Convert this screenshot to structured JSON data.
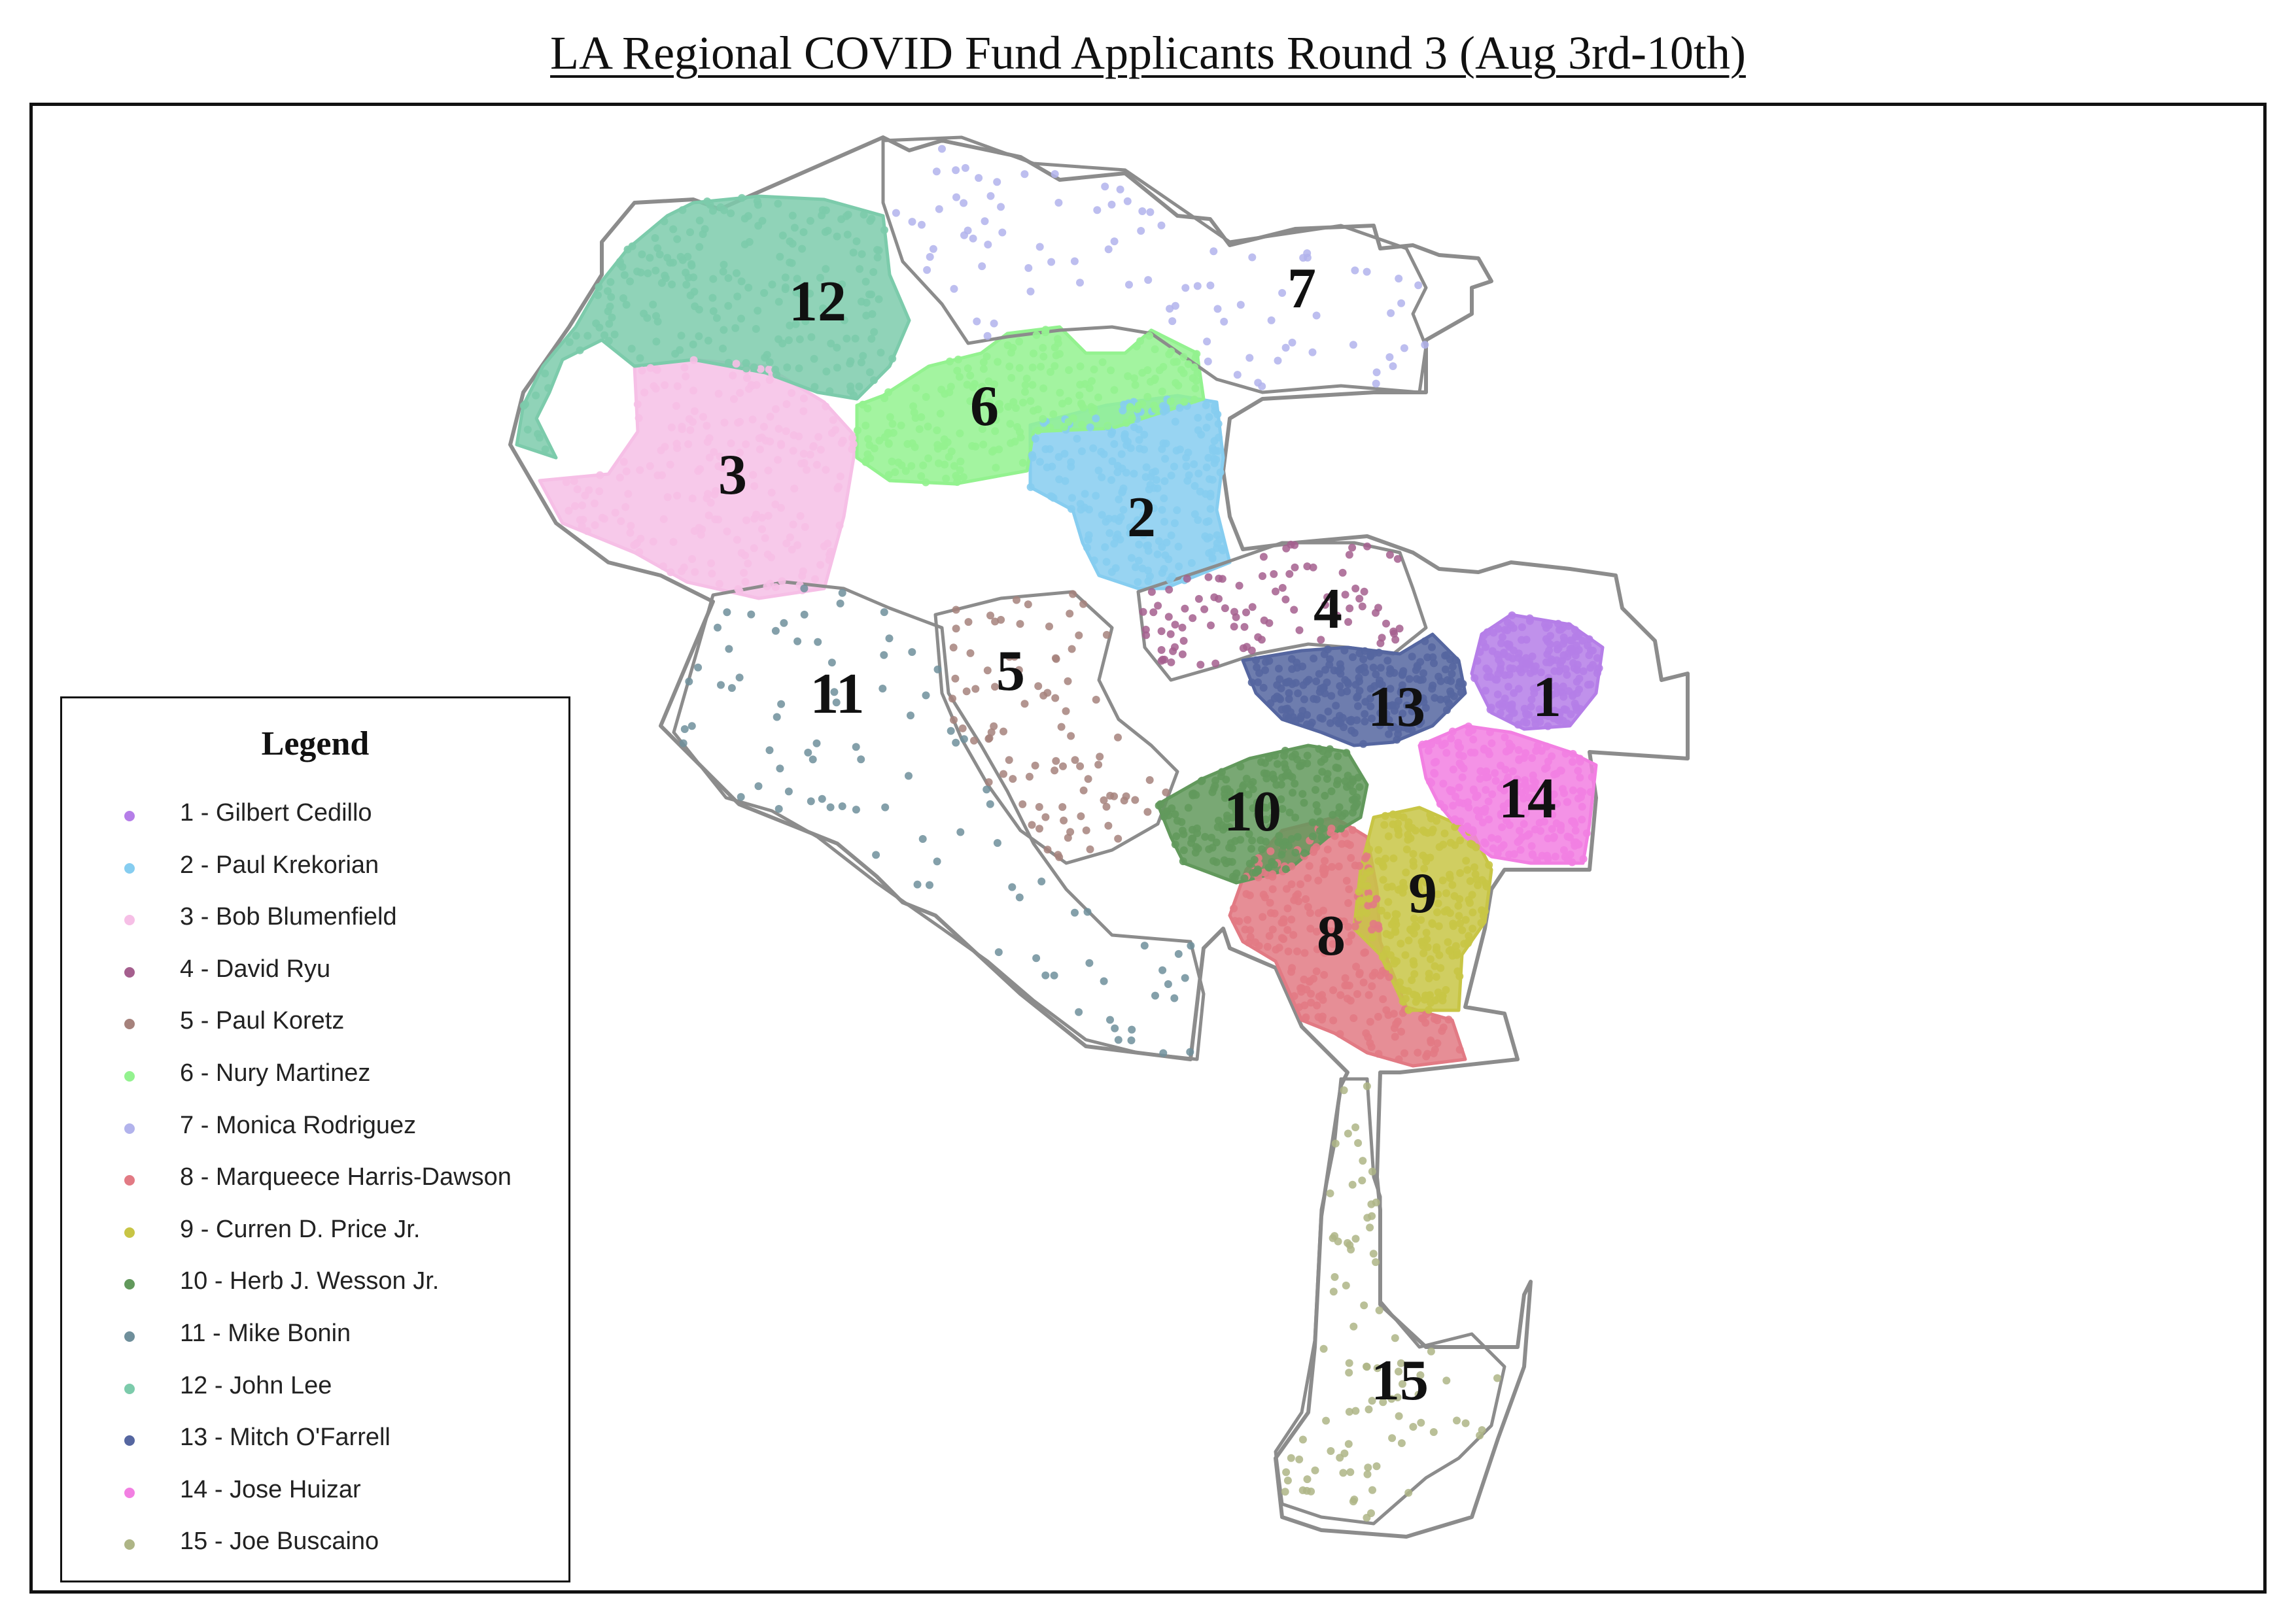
{
  "map": {
    "title": "LA Regional COVID Fund Applicants Round 3 (Aug 3rd-10th)",
    "boundary_color": "#8c8c8c",
    "legend": {
      "title": "Legend"
    },
    "districts": [
      {
        "number": "1",
        "label": "1 - Gilbert Cedillo",
        "color": "#b57ee8"
      },
      {
        "number": "2",
        "label": "2 - Paul Krekorian",
        "color": "#86cdf0"
      },
      {
        "number": "3",
        "label": "3 - Bob Blumenfield",
        "color": "#f6bfe6"
      },
      {
        "number": "4",
        "label": "4 - David Ryu",
        "color": "#a55f8e"
      },
      {
        "number": "5",
        "label": "5 - Paul Koretz",
        "color": "#a6827c"
      },
      {
        "number": "6",
        "label": "6 - Nury Martinez",
        "color": "#93f28f"
      },
      {
        "number": "7",
        "label": "7 - Monica Rodriguez",
        "color": "#b2b3ec"
      },
      {
        "number": "8",
        "label": "8 - Marqueece Harris-Dawson",
        "color": "#e27a84"
      },
      {
        "number": "9",
        "label": "9 - Curren D. Price Jr.",
        "color": "#c8c545"
      },
      {
        "number": "10",
        "label": "10 - Herb J. Wesson Jr.",
        "color": "#62995c"
      },
      {
        "number": "11",
        "label": "11 - Mike Bonin",
        "color": "#6f8f9b"
      },
      {
        "number": "12",
        "label": "12 - John Lee",
        "color": "#7ccbab"
      },
      {
        "number": "13",
        "label": "13 - Mitch O'Farrell",
        "color": "#5566a0"
      },
      {
        "number": "14",
        "label": "14 - Jose Huizar",
        "color": "#f27fe2"
      },
      {
        "number": "15",
        "label": "15 - Joe Buscaino",
        "color": "#aeb586"
      }
    ]
  }
}
